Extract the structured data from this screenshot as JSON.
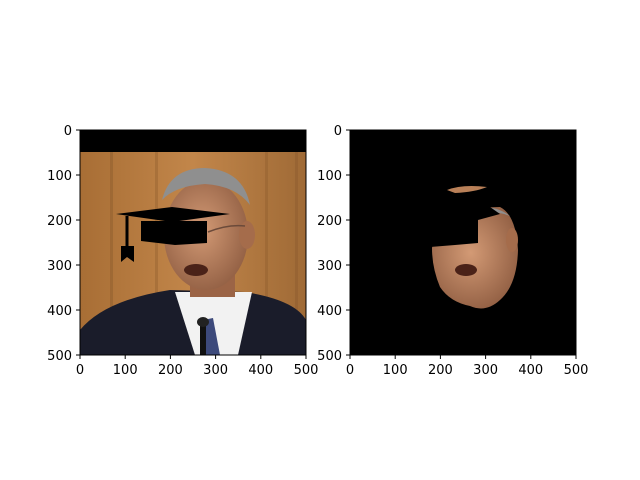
{
  "chart_data": [
    {
      "type": "image",
      "title": "",
      "xlabel": "",
      "ylabel": "",
      "xlim": [
        0,
        500
      ],
      "ylim": [
        500,
        0
      ],
      "xticks": [
        0,
        100,
        200,
        300,
        400,
        500
      ],
      "yticks": [
        0,
        100,
        200,
        300,
        400,
        500
      ],
      "xtick_labels": [
        "0",
        "100",
        "200",
        "300",
        "400",
        "500"
      ],
      "ytick_labels": [
        "0",
        "100",
        "200",
        "300",
        "400",
        "500"
      ],
      "image_content": "photo of a man at a podium with a black graduation cap overlay and black band at top",
      "regions": {
        "top_band": {
          "x": [
            0,
            500
          ],
          "y": [
            0,
            50
          ]
        },
        "cap_board": [
          [
            80,
            195
          ],
          [
            205,
            172
          ],
          [
            330,
            195
          ],
          [
            205,
            205
          ]
        ],
        "cap_crown": {
          "x": [
            135,
            285
          ],
          "y": [
            200,
            250
          ]
        },
        "tassel": {
          "x": [
            95,
            130
          ],
          "y": [
            195,
            295
          ]
        },
        "person_face": {
          "cx": 240,
          "cy": 300,
          "rx": 95,
          "ry": 115
        }
      }
    },
    {
      "type": "image",
      "title": "",
      "xlabel": "",
      "ylabel": "",
      "xlim": [
        0,
        500
      ],
      "ylim": [
        500,
        0
      ],
      "xticks": [
        0,
        100,
        200,
        300,
        400,
        500
      ],
      "yticks": [
        0,
        100,
        200,
        300,
        400,
        500
      ],
      "xtick_labels": [
        "0",
        "100",
        "200",
        "300",
        "400",
        "500"
      ],
      "ytick_labels": [
        "0",
        "100",
        "200",
        "300",
        "400",
        "500"
      ],
      "image_content": "black background with masked face region of the same man",
      "regions": {
        "face_mask_center": {
          "cx": 275,
          "cy": 300
        },
        "forehead_patch": {
          "x": [
            215,
            305
          ],
          "y": [
            120,
            140
          ]
        }
      }
    }
  ],
  "colors": {
    "background": "#ffffff",
    "image_black": "#000000",
    "skin": "#c6906c",
    "wood": "#b5793e",
    "suit": "#1a1c2a",
    "shirt": "#f2f2f2",
    "tie": "#3d4a7b"
  }
}
